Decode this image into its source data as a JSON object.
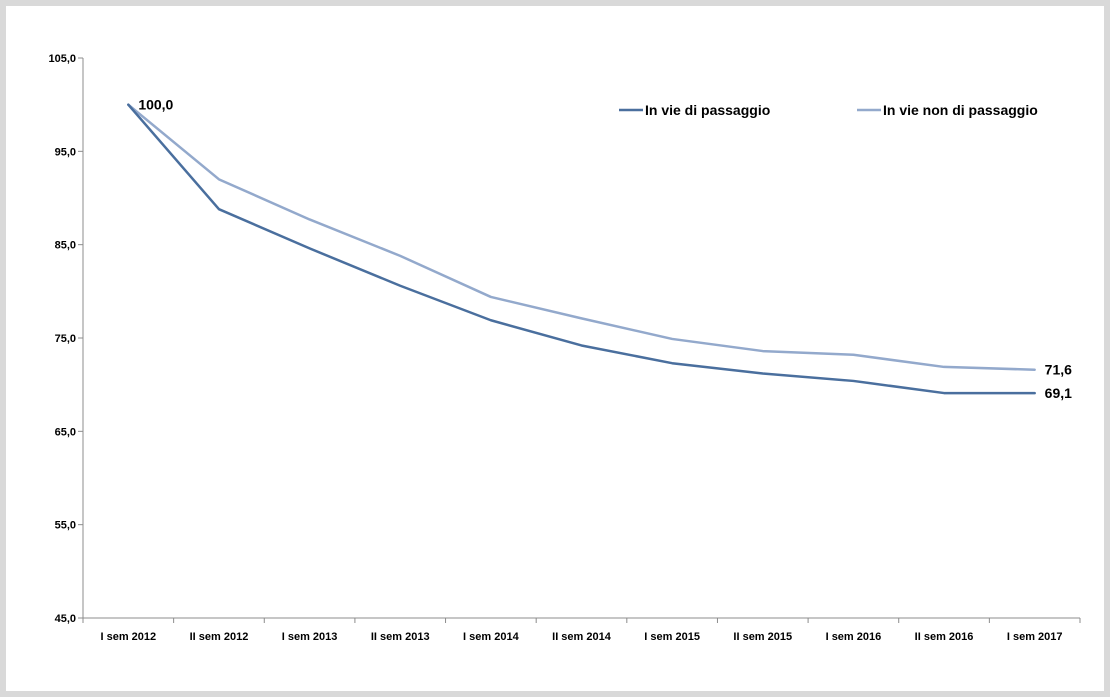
{
  "chart_data": {
    "type": "line",
    "title": "",
    "xlabel": "",
    "ylabel": "",
    "categories": [
      "I sem 2012",
      "II sem 2012",
      "I sem 2013",
      "II sem 2013",
      "I sem 2014",
      "II sem 2014",
      "I sem 2015",
      "II sem 2015",
      "I sem 2016",
      "II sem 2016",
      "I sem 2017"
    ],
    "ylim": [
      45,
      105
    ],
    "yticks": [
      "105,0",
      "95,0",
      "85,0",
      "75,0",
      "65,0",
      "55,0",
      "45,0"
    ],
    "ytick_values": [
      105,
      95,
      85,
      75,
      65,
      55,
      45
    ],
    "grid": false,
    "legend_position": "top-right",
    "series": [
      {
        "name": "In vie di passaggio",
        "color": "#4a6f9e",
        "values": [
          100.0,
          88.8,
          84.6,
          80.6,
          76.9,
          74.2,
          72.3,
          71.2,
          70.4,
          69.1,
          69.1
        ]
      },
      {
        "name": "In vie non di passaggio",
        "color": "#93a9cc",
        "values": [
          100.0,
          92.0,
          87.7,
          83.8,
          79.4,
          77.1,
          74.9,
          73.6,
          73.2,
          71.9,
          71.6
        ]
      }
    ],
    "annotations": [
      {
        "text": "100,0",
        "series": 0,
        "index": 0
      },
      {
        "text": "69,1",
        "series": 0,
        "index": 10
      },
      {
        "text": "71,6",
        "series": 1,
        "index": 10
      }
    ]
  }
}
